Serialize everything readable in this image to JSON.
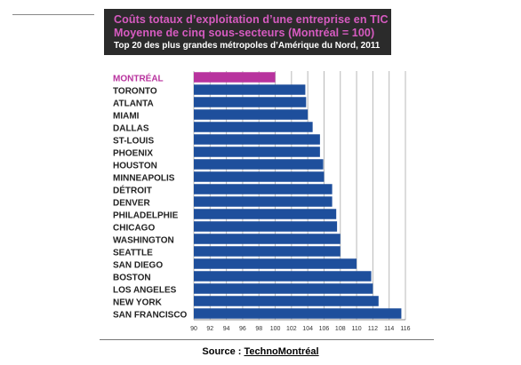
{
  "source": {
    "label": "Source : ",
    "name": "TechnoMontréal"
  },
  "colors": {
    "highlight": "#b8339e",
    "bar": "#1e4f9c",
    "header_bg": "#2b2b2b",
    "title": "#d75bc1"
  },
  "chart_data": {
    "type": "bar",
    "orientation": "horizontal",
    "title": "Coûts totaux d’exploitation d’une entreprise en TIC",
    "subtitle": "Moyenne de cinq sous-secteurs (Montréal = 100)",
    "subtitle2": "Top 20 des plus grandes métropoles d’Amérique du Nord, 2011",
    "categories": [
      "MONTRÉAL",
      "TORONTO",
      "ATLANTA",
      "MIAMI",
      "DALLAS",
      "ST-LOUIS",
      "PHOENIX",
      "HOUSTON",
      "MINNEAPOLIS",
      "DÉTROIT",
      "DENVER",
      "PHILADELPHIE",
      "CHICAGO",
      "WASHINGTON",
      "SEATTLE",
      "SAN DIEGO",
      "BOSTON",
      "LOS ANGELES",
      "NEW YORK",
      "SAN FRANCISCO"
    ],
    "values": [
      100,
      103.7,
      103.8,
      104.0,
      104.6,
      105.5,
      105.5,
      105.9,
      106.0,
      107.0,
      107.0,
      107.5,
      107.6,
      108.0,
      108.0,
      110.0,
      111.8,
      112.0,
      112.7,
      115.5
    ],
    "highlight_index": 0,
    "xlim": [
      90,
      116
    ],
    "xticks": [
      90,
      92,
      94,
      96,
      98,
      100,
      102,
      104,
      106,
      108,
      110,
      112,
      114,
      116
    ],
    "grid": true,
    "xlabel": "",
    "ylabel": ""
  }
}
